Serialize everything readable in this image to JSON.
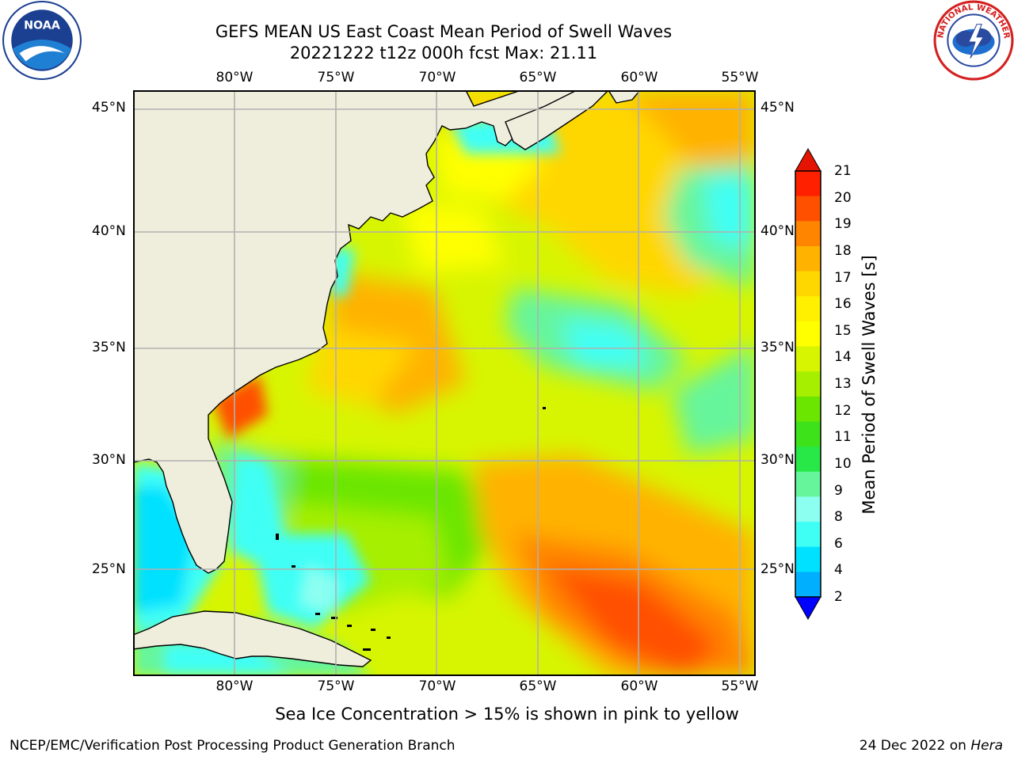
{
  "header": {
    "title_line1": "GEFS MEAN US East Coast Mean Period of Swell Waves",
    "title_line2": "20221222 t12z 000h fcst   Max: 21.11"
  },
  "logos": {
    "left_icon": "noaa-logo-icon",
    "left_text": "NOAA",
    "right_icon": "national-weather-service-logo-icon",
    "right_text": "NATIONAL WEATHER SERVICE"
  },
  "map": {
    "lon_labels": [
      "80°W",
      "75°W",
      "70°W",
      "65°W",
      "60°W",
      "55°W"
    ],
    "lat_labels": [
      "45°N",
      "40°N",
      "35°N",
      "30°N",
      "25°N"
    ],
    "land_color": "#efeedd",
    "grid_color": "#b0b0b0"
  },
  "colorbar": {
    "label": "Mean Period of Swell Waves [s]",
    "ticks": [
      "21",
      "20",
      "19",
      "18",
      "17",
      "16",
      "15",
      "14",
      "13",
      "12",
      "11",
      "10",
      "9",
      "8",
      "6",
      "4",
      "2"
    ],
    "colors_top_to_bottom": [
      "#ff2000",
      "#ff5000",
      "#ff8400",
      "#ffb200",
      "#ffd700",
      "#fff000",
      "#ffff00",
      "#d7f500",
      "#a7ef00",
      "#6be600",
      "#3ee21b",
      "#27e846",
      "#66f59b",
      "#8cfff1",
      "#3ffff5",
      "#00e1ff",
      "#00b0ff"
    ],
    "over_color": "#e51400",
    "under_color": "#0000ff",
    "low_color": "#0066ff"
  },
  "footer": {
    "note": "Sea Ice Concentration > 15% is shown in pink to yellow",
    "credit_left": "NCEP/EMC/Verification Post Processing Product Generation Branch",
    "credit_date": "24 Dec 2022 on",
    "credit_host": "Hera"
  }
}
